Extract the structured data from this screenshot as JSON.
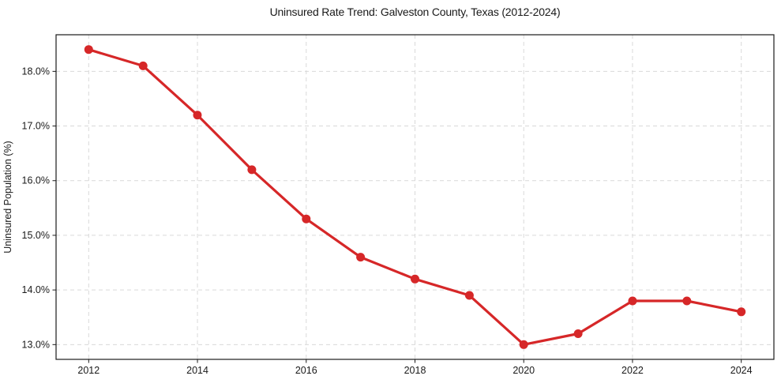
{
  "chart_data": {
    "type": "line",
    "title": "Uninsured Rate Trend: Galveston County, Texas (2012-2024)",
    "xlabel": "",
    "ylabel": "Uninsured Population (%)",
    "x": [
      2012,
      2013,
      2014,
      2015,
      2016,
      2017,
      2018,
      2019,
      2020,
      2021,
      2022,
      2023,
      2024
    ],
    "values": [
      18.4,
      18.1,
      17.2,
      16.2,
      15.3,
      14.6,
      14.2,
      13.9,
      13.0,
      13.2,
      13.8,
      13.8,
      13.6
    ],
    "x_ticks": [
      2012,
      2014,
      2016,
      2018,
      2020,
      2022,
      2024
    ],
    "y_ticks": [
      13.0,
      14.0,
      15.0,
      16.0,
      17.0,
      18.0
    ],
    "y_tick_labels": [
      "13.0%",
      "14.0%",
      "15.0%",
      "16.0%",
      "17.0%",
      "18.0%"
    ],
    "xlim": [
      2011.4,
      2024.6
    ],
    "ylim": [
      12.73,
      18.67
    ],
    "grid": true,
    "legend_position": "none",
    "series_name": "Uninsured rate",
    "line_color": "#d62728",
    "marker": "circle",
    "grid_color": "#d9d9d9",
    "axis_color": "#1a1a1a"
  }
}
